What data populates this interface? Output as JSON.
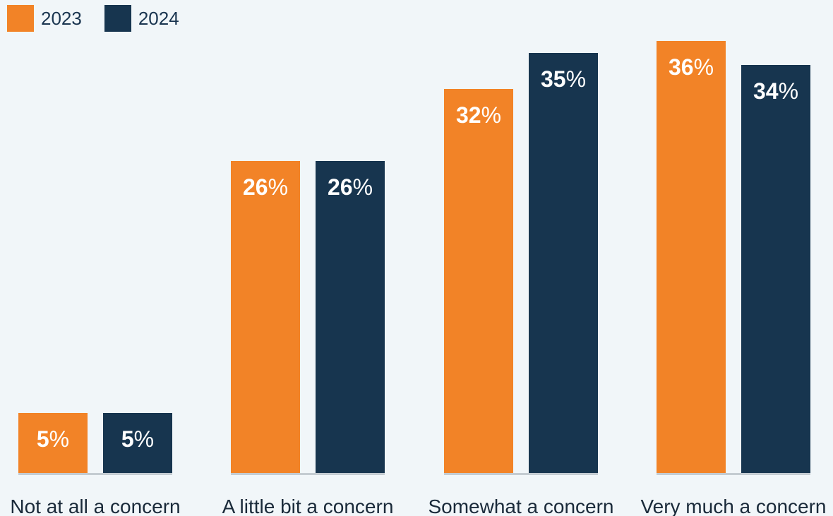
{
  "chart_data": {
    "type": "bar",
    "categories": [
      "Not at all a concern",
      "A little bit a concern",
      "Somewhat a concern",
      "Very much a concern"
    ],
    "series": [
      {
        "name": "2023",
        "values": [
          5,
          26,
          32,
          36
        ],
        "color": "#f28327"
      },
      {
        "name": "2024",
        "values": [
          5,
          26,
          35,
          34
        ],
        "color": "#17354f"
      }
    ],
    "value_suffix": "%",
    "ylim": [
      0,
      38
    ],
    "legend_position": "top-left",
    "grid": false,
    "baseline_color": "#c4ccd2"
  }
}
